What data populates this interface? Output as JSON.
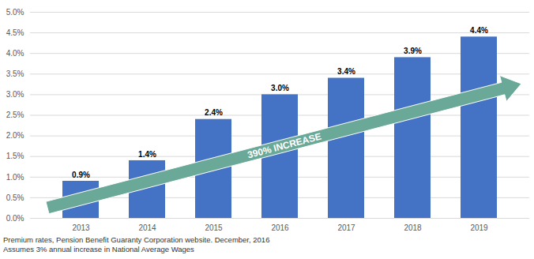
{
  "chart_data": {
    "type": "bar",
    "categories": [
      "2013",
      "2014",
      "2015",
      "2016",
      "2017",
      "2018",
      "2019"
    ],
    "values": [
      0.9,
      1.4,
      2.4,
      3.0,
      3.4,
      3.9,
      4.4
    ],
    "value_labels": [
      "0.9%",
      "1.4%",
      "2.4%",
      "3.0%",
      "3.4%",
      "3.9%",
      "4.4%"
    ],
    "color": "#4472c4",
    "ylim": [
      0,
      5
    ],
    "yticks": [
      {
        "value": 0,
        "label": "0.0%"
      },
      {
        "value": 0.5,
        "label": "0.5%"
      },
      {
        "value": 1,
        "label": "1.0%"
      },
      {
        "value": 1.5,
        "label": "1.5%"
      },
      {
        "value": 2,
        "label": "2.0%"
      },
      {
        "value": 2.5,
        "label": "2.5%"
      },
      {
        "value": 3,
        "label": "3.0%"
      },
      {
        "value": 3.5,
        "label": "3.5%"
      },
      {
        "value": 4,
        "label": "4.0%"
      },
      {
        "value": 4.5,
        "label": "4.5%"
      },
      {
        "value": 5,
        "label": "5.0%"
      }
    ],
    "grid": true,
    "data_labels": true,
    "annotation": "390% INCREASE",
    "caption": [
      "Premium rates, Pension Benefit Guaranty Corporation website. December, 2016",
      "Assumes 3% annual increase in National Average Wages"
    ]
  }
}
